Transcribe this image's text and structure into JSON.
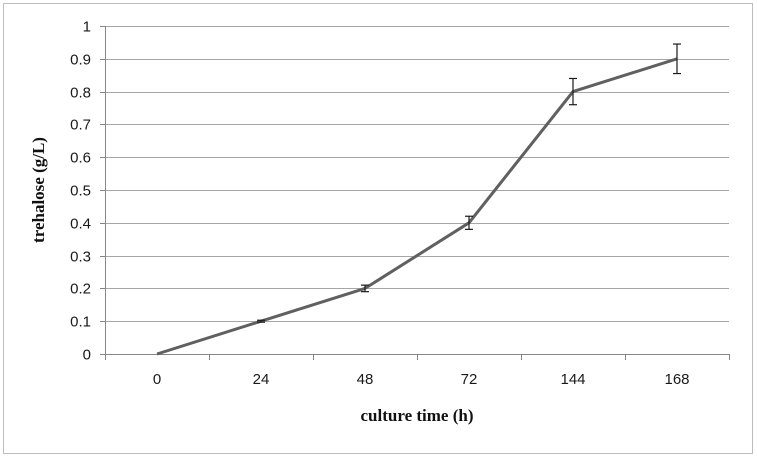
{
  "chart_data": {
    "type": "line",
    "categories": [
      "0",
      "24",
      "48",
      "72",
      "144",
      "168"
    ],
    "series": [
      {
        "values": [
          0,
          0.1,
          0.2,
          0.4,
          0.8,
          0.9
        ],
        "errors": [
          0,
          0.003,
          0.01,
          0.02,
          0.04,
          0.045
        ],
        "color": "#606060"
      }
    ],
    "xlabel": "culture time (h)",
    "ylabel": "trehalose (g/L)",
    "ylim": [
      0,
      1
    ],
    "yticks": [
      0,
      0.1,
      0.2,
      0.3,
      0.4,
      0.5,
      0.6,
      0.7,
      0.8,
      0.9,
      1
    ],
    "ytick_labels": [
      "0",
      "0.1",
      "0.2",
      "0.3",
      "0.4",
      "0.5",
      "0.6",
      "0.7",
      "0.8",
      "0.9",
      "1"
    ],
    "grid": true,
    "legend": "none",
    "colors": {
      "gridline": "#a6a6a6",
      "axis": "#868686",
      "line": "#606060",
      "errorbar": "#1a1a1a"
    }
  }
}
